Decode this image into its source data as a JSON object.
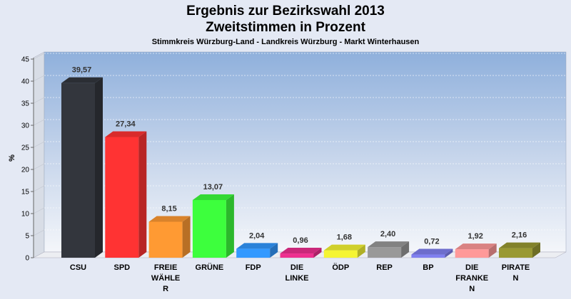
{
  "chart_data": {
    "type": "bar",
    "title": "Ergebnis zur Bezirkswahl 2013",
    "title2": "Zweitstimmen in Prozent",
    "subtitle": "Stimmkreis Würzburg-Land - Landkreis Würzburg - Markt Winterhausen",
    "ylabel": "%",
    "ylim": [
      0,
      45
    ],
    "yticks": [
      0,
      5,
      10,
      15,
      20,
      25,
      30,
      35,
      40,
      45
    ],
    "grid": true,
    "categories": [
      [
        "CSU"
      ],
      [
        "SPD"
      ],
      [
        "FREIE",
        "WÄHLE",
        "R"
      ],
      [
        "GRÜNE"
      ],
      [
        "FDP"
      ],
      [
        "DIE",
        "LINKE"
      ],
      [
        "ÖDP"
      ],
      [
        "REP"
      ],
      [
        "BP"
      ],
      [
        "DIE",
        "FRANKE",
        "N"
      ],
      [
        "PIRATE",
        "N"
      ]
    ],
    "values": [
      39.57,
      27.34,
      8.15,
      13.07,
      2.04,
      0.96,
      1.68,
      2.4,
      0.72,
      1.92,
      2.16
    ],
    "value_labels": [
      "39,57",
      "27,34",
      "8,15",
      "13,07",
      "2,04",
      "0,96",
      "1,68",
      "2,40",
      "0,72",
      "1,92",
      "2,16"
    ],
    "colors": [
      "#33363d",
      "#ff3333",
      "#ff9a33",
      "#3dff3d",
      "#3399ff",
      "#ee2f8f",
      "#f5f533",
      "#999999",
      "#8080f0",
      "#ff9999",
      "#999933"
    ]
  }
}
